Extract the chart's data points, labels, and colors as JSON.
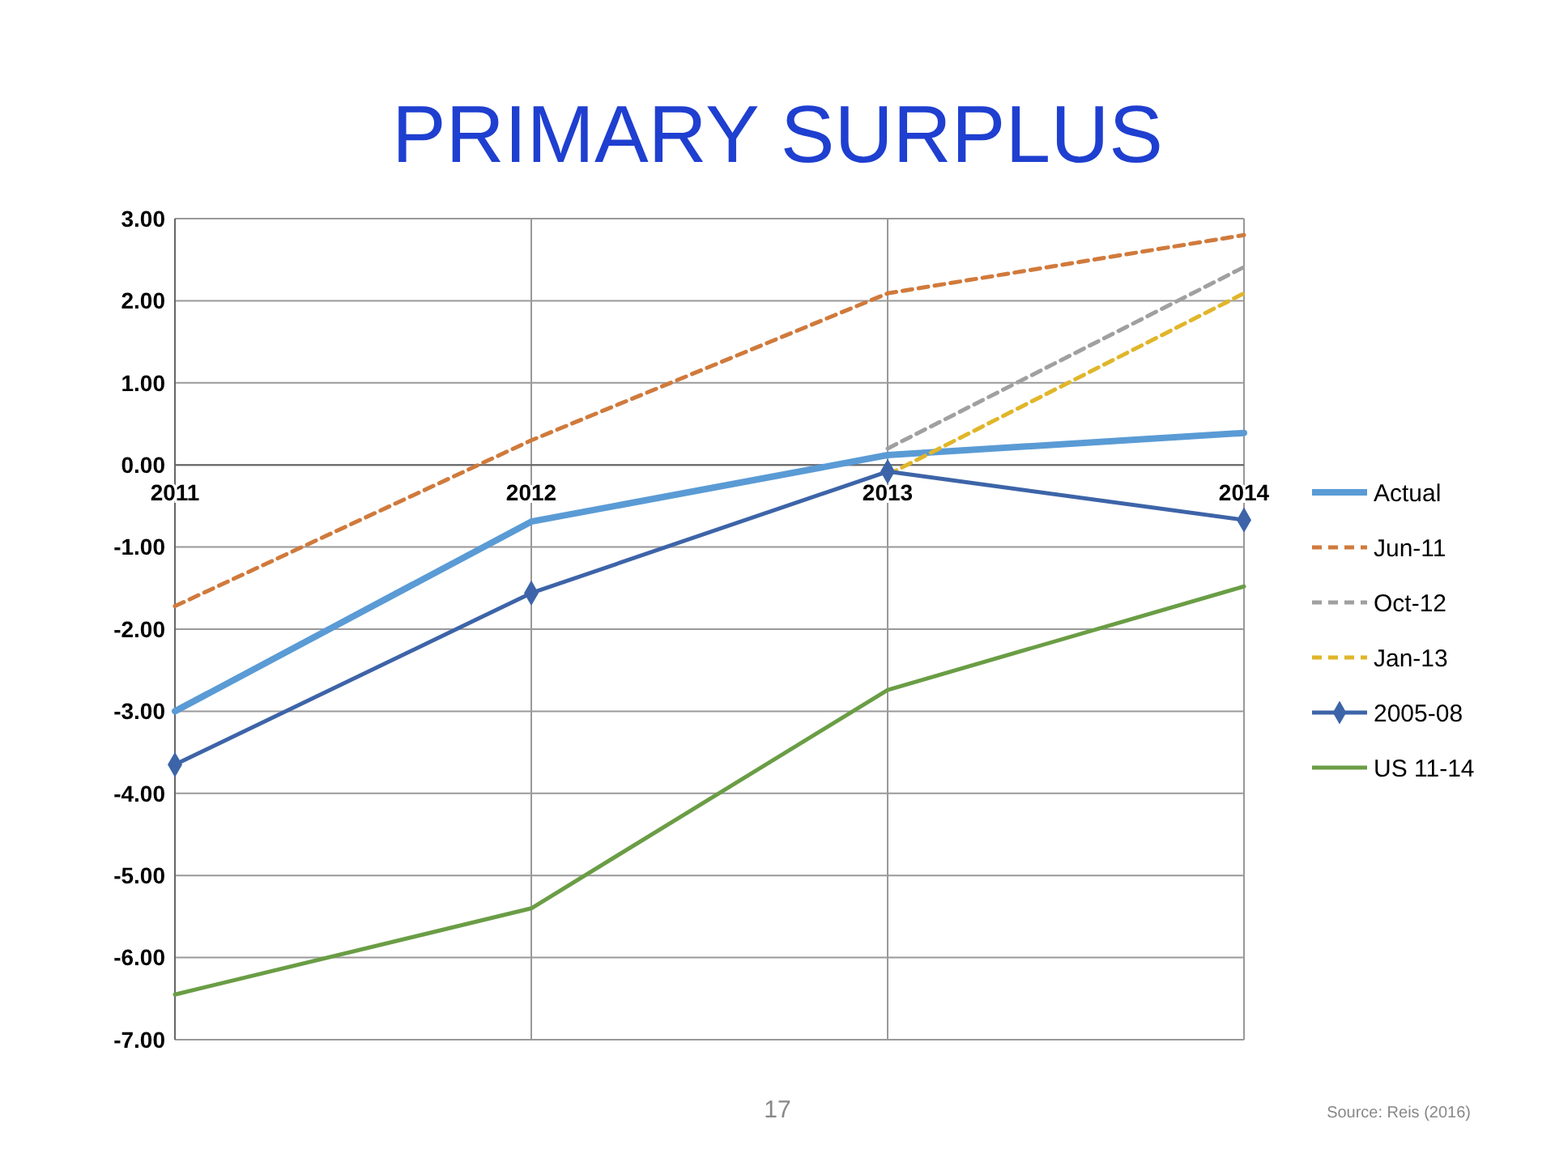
{
  "chart_data": {
    "type": "line",
    "title": "PRIMARY SURPLUS",
    "categories": [
      "2011",
      "2012",
      "2013",
      "2014"
    ],
    "ylim": [
      -7,
      3
    ],
    "yticks": [
      {
        "value": 3,
        "label": "3.00"
      },
      {
        "value": 2,
        "label": "2.00"
      },
      {
        "value": 1,
        "label": "1.00"
      },
      {
        "value": 0,
        "label": "0.00"
      },
      {
        "value": -1,
        "label": "-1.00"
      },
      {
        "value": -2,
        "label": "-2.00"
      },
      {
        "value": -3,
        "label": "-3.00"
      },
      {
        "value": -4,
        "label": "-4.00"
      },
      {
        "value": -5,
        "label": "-5.00"
      },
      {
        "value": -6,
        "label": "-6.00"
      },
      {
        "value": -7,
        "label": "-7.00"
      }
    ],
    "grid": true,
    "legend": "right",
    "series": [
      {
        "name": "Actual",
        "color": "#5a9bd5",
        "values": [
          -3.0,
          -0.69,
          0.12,
          0.39
        ],
        "line_style": "solid",
        "marker": "none"
      },
      {
        "name": "Jun-11",
        "color": "#d07a3c",
        "values": [
          -1.72,
          0.3,
          2.09,
          2.8
        ],
        "line_style": "dashed",
        "marker": "none"
      },
      {
        "name": "Oct-12",
        "color": "#a0a0a0",
        "values": [
          null,
          null,
          0.2,
          2.41
        ],
        "line_style": "dashed",
        "marker": "none"
      },
      {
        "name": "Jan-13",
        "color": "#e0b62a",
        "values": [
          null,
          null,
          -0.12,
          2.09
        ],
        "line_style": "dashed",
        "marker": "none"
      },
      {
        "name": "2005-08",
        "color": "#3d64a8",
        "values": [
          -3.65,
          -1.56,
          -0.08,
          -0.67
        ],
        "line_style": "solid",
        "marker": "diamond"
      },
      {
        "name": "US 11-14",
        "color": "#6a9d45",
        "values": [
          -6.45,
          -5.4,
          -2.74,
          -1.48
        ],
        "line_style": "solid",
        "marker": "none"
      }
    ],
    "annotations": [
      "17",
      "Source: Reis (2016)"
    ]
  }
}
